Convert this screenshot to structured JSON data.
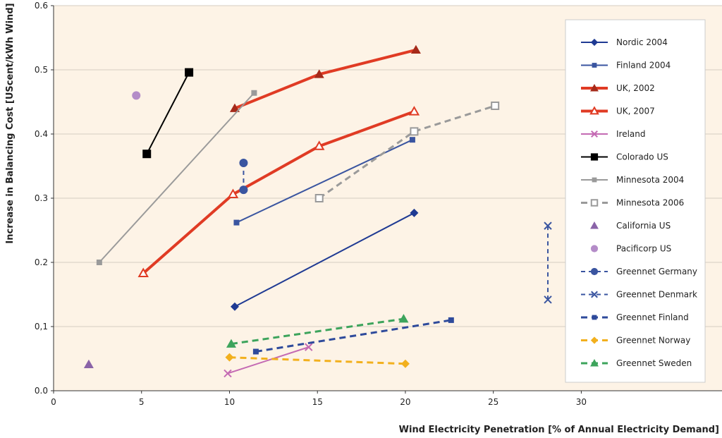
{
  "chart_data": {
    "type": "scatter",
    "xlabel": "Wind Electricity Penetration [% of Annual Electricity Demand]",
    "ylabel": "Increase in Balancing Cost [UScent/kWh Wind]",
    "xlim": [
      0,
      38
    ],
    "ylim": [
      0,
      0.6
    ],
    "x_ticks": [
      {
        "value": 0,
        "label": "0"
      },
      {
        "value": 5,
        "label": "5"
      },
      {
        "value": 10,
        "label": "10"
      },
      {
        "value": 15,
        "label": "15"
      },
      {
        "value": 20,
        "label": "20"
      },
      {
        "value": 25,
        "label": "25"
      },
      {
        "value": 30,
        "label": "30"
      }
    ],
    "y_ticks": [
      {
        "value": 0,
        "label": "0.0"
      },
      {
        "value": 0.1,
        "label": "0,1"
      },
      {
        "value": 0.2,
        "label": "0.2"
      },
      {
        "value": 0.3,
        "label": "0.3"
      },
      {
        "value": 0.4,
        "label": "0.4"
      },
      {
        "value": 0.5,
        "label": "0.5"
      },
      {
        "value": 0.6,
        "label": "0.6"
      }
    ],
    "grid": "horizontal",
    "legend_position": "right",
    "series": [
      {
        "name": "Nordic 2004",
        "color": "#1f3a93",
        "marker": "diamond",
        "line": "solid",
        "width": 2,
        "x": [
          10.3,
          20.5
        ],
        "y": [
          0.131,
          0.277
        ]
      },
      {
        "name": "Finland 2004",
        "color": "#3a55a0",
        "marker": "square-small",
        "line": "solid",
        "width": 2,
        "x": [
          10.4,
          20.4
        ],
        "y": [
          0.262,
          0.391
        ]
      },
      {
        "name": "UK, 2002",
        "color": "#e03b24",
        "marker": "triangle-filled",
        "marker_color": "#a52a1a",
        "line": "solid",
        "width": 4,
        "x": [
          10.3,
          15.1,
          20.6
        ],
        "y": [
          0.44,
          0.493,
          0.531
        ]
      },
      {
        "name": "UK, 2007",
        "color": "#e03b24",
        "marker": "triangle-open",
        "line": "solid",
        "width": 4,
        "x": [
          5.1,
          10.2,
          15.1,
          20.5
        ],
        "y": [
          0.183,
          0.306,
          0.381,
          0.435
        ]
      },
      {
        "name": "Ireland",
        "color": "#c46ab3",
        "marker": "x",
        "line": "solid",
        "width": 2,
        "x": [
          9.9,
          14.5
        ],
        "y": [
          0.027,
          0.068
        ]
      },
      {
        "name": "Colorado US",
        "color": "#000000",
        "marker": "square-big",
        "line": "solid",
        "width": 2,
        "x": [
          5.3,
          7.7
        ],
        "y": [
          0.369,
          0.496
        ]
      },
      {
        "name": "Minnesota 2004",
        "color": "#9a9a9a",
        "marker": "square-small",
        "line": "solid",
        "width": 2,
        "x": [
          2.6,
          11.4
        ],
        "y": [
          0.2,
          0.464
        ]
      },
      {
        "name": "Minnesota 2006",
        "color": "#9a9a9a",
        "marker": "square-open",
        "line": "dashed",
        "width": 3,
        "x": [
          15.1,
          20.5,
          25.1
        ],
        "y": [
          0.3,
          0.404,
          0.444
        ]
      },
      {
        "name": "California US",
        "color": "#8a63a8",
        "marker": "triangle-filled",
        "marker_color": "#8a63a8",
        "line": "none",
        "width": 0,
        "x": [
          2.0
        ],
        "y": [
          0.041
        ]
      },
      {
        "name": "Pacificorp US",
        "color": "#b48cc8",
        "marker": "circle",
        "line": "none",
        "width": 0,
        "x": [
          4.7
        ],
        "y": [
          0.46
        ]
      },
      {
        "name": "Greennet Germany",
        "color": "#3a55a0",
        "marker": "circle",
        "line": "dashed",
        "width": 2,
        "x": [
          10.8,
          10.8
        ],
        "y": [
          0.355,
          0.313
        ]
      },
      {
        "name": "Greennet Denmark",
        "color": "#3a55a0",
        "marker": "x",
        "line": "dashed",
        "width": 2,
        "x": [
          28.1,
          28.1
        ],
        "y": [
          0.257,
          0.142
        ]
      },
      {
        "name": "Greennet Finland",
        "color": "#2e4a9b",
        "marker": "square-small",
        "line": "dashed",
        "width": 3,
        "x": [
          11.5,
          22.6
        ],
        "y": [
          0.061,
          0.11
        ]
      },
      {
        "name": "Greennet Norway",
        "color": "#f2b01e",
        "marker": "diamond",
        "line": "dashed",
        "width": 3,
        "x": [
          10.0,
          20.0
        ],
        "y": [
          0.052,
          0.042
        ]
      },
      {
        "name": "Greennet Sweden",
        "color": "#3da45c",
        "marker": "triangle-filled",
        "marker_color": "#3da45c",
        "line": "dashed",
        "width": 3,
        "x": [
          10.1,
          19.9
        ],
        "y": [
          0.073,
          0.112
        ]
      }
    ]
  }
}
